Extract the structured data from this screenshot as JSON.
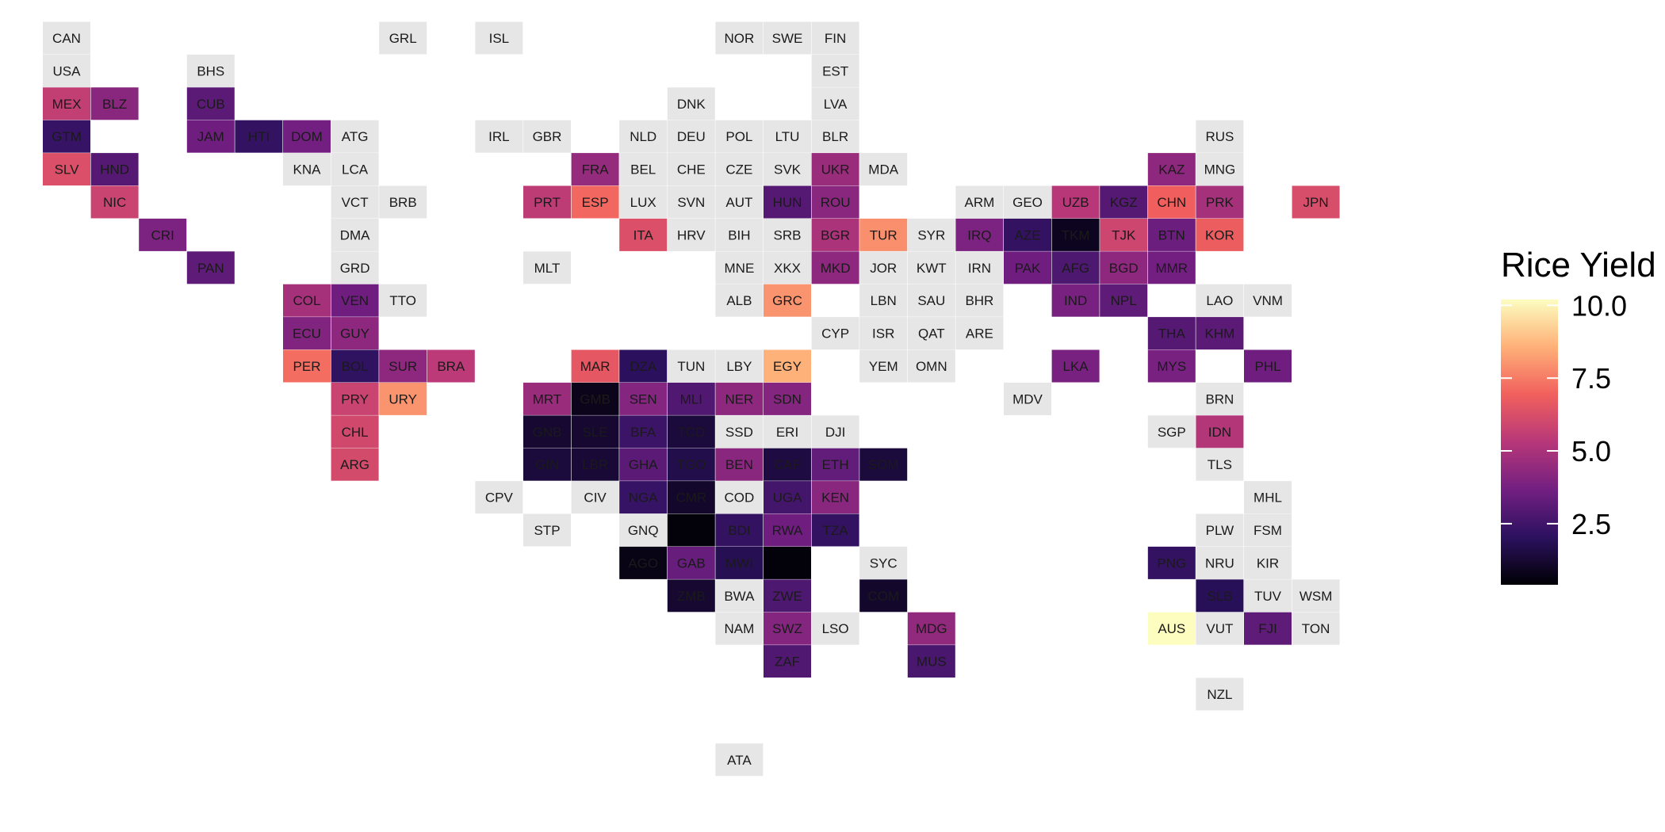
{
  "legend": {
    "title": "Rice Yield",
    "ticks": [
      2.5,
      5.0,
      7.5,
      10.0
    ],
    "tick_labels": [
      "2.5",
      "5.0",
      "7.5",
      "10.0"
    ],
    "domain": [
      0.4,
      10.2
    ],
    "colormap": "magma",
    "colors": [
      "#000004",
      "#2c115f",
      "#721f81",
      "#b73779",
      "#f1605d",
      "#feb078",
      "#fcfdbf"
    ]
  },
  "no_data_color": "#e6e6e6",
  "tiles": [
    {
      "code": "CAN",
      "col": 0,
      "row": 0,
      "value": null
    },
    {
      "code": "GRL",
      "col": 7,
      "row": 0,
      "value": null
    },
    {
      "code": "ISL",
      "col": 9,
      "row": 0,
      "value": null
    },
    {
      "code": "NOR",
      "col": 14,
      "row": 0,
      "value": null
    },
    {
      "code": "SWE",
      "col": 15,
      "row": 0,
      "value": null
    },
    {
      "code": "FIN",
      "col": 16,
      "row": 0,
      "value": null
    },
    {
      "code": "USA",
      "col": 0,
      "row": 1,
      "value": null
    },
    {
      "code": "BHS",
      "col": 3,
      "row": 1,
      "value": null
    },
    {
      "code": "EST",
      "col": 16,
      "row": 1,
      "value": null
    },
    {
      "code": "MEX",
      "col": 0,
      "row": 2,
      "value": 5.6
    },
    {
      "code": "BLZ",
      "col": 1,
      "row": 2,
      "value": 4.2
    },
    {
      "code": "CUB",
      "col": 3,
      "row": 2,
      "value": 3.1
    },
    {
      "code": "DNK",
      "col": 13,
      "row": 2,
      "value": null
    },
    {
      "code": "LVA",
      "col": 16,
      "row": 2,
      "value": null
    },
    {
      "code": "GTM",
      "col": 0,
      "row": 3,
      "value": 2.3
    },
    {
      "code": "JAM",
      "col": 3,
      "row": 3,
      "value": 3.6
    },
    {
      "code": "HTI",
      "col": 4,
      "row": 3,
      "value": 2.2
    },
    {
      "code": "DOM",
      "col": 5,
      "row": 3,
      "value": 3.7
    },
    {
      "code": "ATG",
      "col": 6,
      "row": 3,
      "value": null
    },
    {
      "code": "IRL",
      "col": 9,
      "row": 3,
      "value": null
    },
    {
      "code": "GBR",
      "col": 10,
      "row": 3,
      "value": null
    },
    {
      "code": "NLD",
      "col": 12,
      "row": 3,
      "value": null
    },
    {
      "code": "DEU",
      "col": 13,
      "row": 3,
      "value": null
    },
    {
      "code": "POL",
      "col": 14,
      "row": 3,
      "value": null
    },
    {
      "code": "LTU",
      "col": 15,
      "row": 3,
      "value": null
    },
    {
      "code": "BLR",
      "col": 16,
      "row": 3,
      "value": null
    },
    {
      "code": "RUS",
      "col": 24,
      "row": 3,
      "value": null
    },
    {
      "code": "SLV",
      "col": 0,
      "row": 4,
      "value": 6.3
    },
    {
      "code": "HND",
      "col": 1,
      "row": 4,
      "value": 3.0
    },
    {
      "code": "KNA",
      "col": 5,
      "row": 4,
      "value": null
    },
    {
      "code": "LCA",
      "col": 6,
      "row": 4,
      "value": null
    },
    {
      "code": "FRA",
      "col": 11,
      "row": 4,
      "value": 4.5
    },
    {
      "code": "BEL",
      "col": 12,
      "row": 4,
      "value": null
    },
    {
      "code": "CHE",
      "col": 13,
      "row": 4,
      "value": null
    },
    {
      "code": "CZE",
      "col": 14,
      "row": 4,
      "value": null
    },
    {
      "code": "SVK",
      "col": 15,
      "row": 4,
      "value": null
    },
    {
      "code": "UKR",
      "col": 16,
      "row": 4,
      "value": 4.6
    },
    {
      "code": "MDA",
      "col": 17,
      "row": 4,
      "value": null
    },
    {
      "code": "KAZ",
      "col": 23,
      "row": 4,
      "value": 4.3
    },
    {
      "code": "MNG",
      "col": 24,
      "row": 4,
      "value": null
    },
    {
      "code": "NIC",
      "col": 1,
      "row": 5,
      "value": 5.8
    },
    {
      "code": "VCT",
      "col": 6,
      "row": 5,
      "value": null
    },
    {
      "code": "BRB",
      "col": 7,
      "row": 5,
      "value": null
    },
    {
      "code": "PRT",
      "col": 10,
      "row": 5,
      "value": 5.5
    },
    {
      "code": "ESP",
      "col": 11,
      "row": 5,
      "value": 7.1
    },
    {
      "code": "LUX",
      "col": 12,
      "row": 5,
      "value": null
    },
    {
      "code": "SVN",
      "col": 13,
      "row": 5,
      "value": null
    },
    {
      "code": "AUT",
      "col": 14,
      "row": 5,
      "value": null
    },
    {
      "code": "HUN",
      "col": 15,
      "row": 5,
      "value": 3.0
    },
    {
      "code": "ROU",
      "col": 16,
      "row": 5,
      "value": 4.2
    },
    {
      "code": "ARM",
      "col": 19,
      "row": 5,
      "value": null
    },
    {
      "code": "GEO",
      "col": 20,
      "row": 5,
      "value": null
    },
    {
      "code": "UZB",
      "col": 21,
      "row": 5,
      "value": 5.3
    },
    {
      "code": "KGZ",
      "col": 22,
      "row": 5,
      "value": 3.0
    },
    {
      "code": "CHN",
      "col": 23,
      "row": 5,
      "value": 6.9
    },
    {
      "code": "PRK",
      "col": 24,
      "row": 5,
      "value": 4.9
    },
    {
      "code": "JPN",
      "col": 26,
      "row": 5,
      "value": 6.2
    },
    {
      "code": "CRI",
      "col": 2,
      "row": 6,
      "value": 3.9
    },
    {
      "code": "DMA",
      "col": 6,
      "row": 6,
      "value": null
    },
    {
      "code": "ITA",
      "col": 12,
      "row": 6,
      "value": 6.3
    },
    {
      "code": "HRV",
      "col": 13,
      "row": 6,
      "value": null
    },
    {
      "code": "BIH",
      "col": 14,
      "row": 6,
      "value": null
    },
    {
      "code": "SRB",
      "col": 15,
      "row": 6,
      "value": null
    },
    {
      "code": "BGR",
      "col": 16,
      "row": 6,
      "value": 5.0
    },
    {
      "code": "TUR",
      "col": 17,
      "row": 6,
      "value": 7.9
    },
    {
      "code": "SYR",
      "col": 18,
      "row": 6,
      "value": null
    },
    {
      "code": "IRQ",
      "col": 19,
      "row": 6,
      "value": 3.9
    },
    {
      "code": "AZE",
      "col": 20,
      "row": 6,
      "value": 2.2
    },
    {
      "code": "TKM",
      "col": 21,
      "row": 6,
      "value": 0.9
    },
    {
      "code": "TJK",
      "col": 22,
      "row": 6,
      "value": 5.9
    },
    {
      "code": "BTN",
      "col": 23,
      "row": 6,
      "value": 3.5
    },
    {
      "code": "KOR",
      "col": 24,
      "row": 6,
      "value": 6.8
    },
    {
      "code": "PAN",
      "col": 3,
      "row": 7,
      "value": 3.2
    },
    {
      "code": "GRD",
      "col": 6,
      "row": 7,
      "value": null
    },
    {
      "code": "MLT",
      "col": 10,
      "row": 7,
      "value": null
    },
    {
      "code": "MNE",
      "col": 14,
      "row": 7,
      "value": null
    },
    {
      "code": "XKX",
      "col": 15,
      "row": 7,
      "value": null
    },
    {
      "code": "MKD",
      "col": 16,
      "row": 7,
      "value": 4.3
    },
    {
      "code": "JOR",
      "col": 17,
      "row": 7,
      "value": null
    },
    {
      "code": "KWT",
      "col": 18,
      "row": 7,
      "value": null
    },
    {
      "code": "IRN",
      "col": 19,
      "row": 7,
      "value": null
    },
    {
      "code": "PAK",
      "col": 20,
      "row": 7,
      "value": 3.6
    },
    {
      "code": "AFG",
      "col": 21,
      "row": 7,
      "value": 2.8
    },
    {
      "code": "BGD",
      "col": 22,
      "row": 7,
      "value": 4.3
    },
    {
      "code": "MMR",
      "col": 23,
      "row": 7,
      "value": 3.7
    },
    {
      "code": "COL",
      "col": 5,
      "row": 8,
      "value": 4.9
    },
    {
      "code": "VEN",
      "col": 6,
      "row": 8,
      "value": 3.6
    },
    {
      "code": "TTO",
      "col": 7,
      "row": 8,
      "value": null
    },
    {
      "code": "ALB",
      "col": 14,
      "row": 8,
      "value": null
    },
    {
      "code": "GRC",
      "col": 15,
      "row": 8,
      "value": 8.0
    },
    {
      "code": "LBN",
      "col": 17,
      "row": 8,
      "value": null
    },
    {
      "code": "SAU",
      "col": 18,
      "row": 8,
      "value": null
    },
    {
      "code": "BHR",
      "col": 19,
      "row": 8,
      "value": null
    },
    {
      "code": "IND",
      "col": 21,
      "row": 8,
      "value": 3.8
    },
    {
      "code": "NPL",
      "col": 22,
      "row": 8,
      "value": 3.2
    },
    {
      "code": "LAO",
      "col": 24,
      "row": 8,
      "value": null
    },
    {
      "code": "VNM",
      "col": 25,
      "row": 8,
      "value": null
    },
    {
      "code": "ECU",
      "col": 5,
      "row": 9,
      "value": 4.0
    },
    {
      "code": "GUY",
      "col": 6,
      "row": 9,
      "value": 4.3
    },
    {
      "code": "CYP",
      "col": 16,
      "row": 9,
      "value": null
    },
    {
      "code": "ISR",
      "col": 17,
      "row": 9,
      "value": null
    },
    {
      "code": "QAT",
      "col": 18,
      "row": 9,
      "value": null
    },
    {
      "code": "ARE",
      "col": 19,
      "row": 9,
      "value": null
    },
    {
      "code": "THA",
      "col": 23,
      "row": 9,
      "value": 3.0
    },
    {
      "code": "KHM",
      "col": 24,
      "row": 9,
      "value": 3.1
    },
    {
      "code": "PER",
      "col": 5,
      "row": 10,
      "value": 7.2
    },
    {
      "code": "BOL",
      "col": 6,
      "row": 10,
      "value": 2.1
    },
    {
      "code": "SUR",
      "col": 7,
      "row": 10,
      "value": 4.3
    },
    {
      "code": "BRA",
      "col": 8,
      "row": 10,
      "value": 5.4
    },
    {
      "code": "MAR",
      "col": 11,
      "row": 10,
      "value": 6.6
    },
    {
      "code": "DZA",
      "col": 12,
      "row": 10,
      "value": 2.0
    },
    {
      "code": "TUN",
      "col": 13,
      "row": 10,
      "value": null
    },
    {
      "code": "LBY",
      "col": 14,
      "row": 10,
      "value": null
    },
    {
      "code": "EGY",
      "col": 15,
      "row": 10,
      "value": 8.6
    },
    {
      "code": "YEM",
      "col": 17,
      "row": 10,
      "value": null
    },
    {
      "code": "OMN",
      "col": 18,
      "row": 10,
      "value": null
    },
    {
      "code": "LKA",
      "col": 21,
      "row": 10,
      "value": 3.8
    },
    {
      "code": "MYS",
      "col": 23,
      "row": 10,
      "value": 3.8
    },
    {
      "code": "PHL",
      "col": 25,
      "row": 10,
      "value": 3.6
    },
    {
      "code": "PRY",
      "col": 6,
      "row": 11,
      "value": 5.8
    },
    {
      "code": "URY",
      "col": 7,
      "row": 11,
      "value": 8.0
    },
    {
      "code": "MRT",
      "col": 10,
      "row": 11,
      "value": 4.6
    },
    {
      "code": "GMB",
      "col": 11,
      "row": 11,
      "value": 0.8
    },
    {
      "code": "SEN",
      "col": 12,
      "row": 11,
      "value": 4.1
    },
    {
      "code": "MLI",
      "col": 13,
      "row": 11,
      "value": 2.9
    },
    {
      "code": "NER",
      "col": 14,
      "row": 11,
      "value": 4.3
    },
    {
      "code": "SDN",
      "col": 15,
      "row": 11,
      "value": 4.1
    },
    {
      "code": "MDV",
      "col": 20,
      "row": 11,
      "value": null
    },
    {
      "code": "BRN",
      "col": 24,
      "row": 11,
      "value": null
    },
    {
      "code": "CHL",
      "col": 6,
      "row": 12,
      "value": 6.0
    },
    {
      "code": "GNB",
      "col": 10,
      "row": 12,
      "value": 1.2
    },
    {
      "code": "SLE",
      "col": 11,
      "row": 12,
      "value": 1.2
    },
    {
      "code": "BFA",
      "col": 12,
      "row": 12,
      "value": 2.4
    },
    {
      "code": "TCD",
      "col": 13,
      "row": 12,
      "value": 1.4
    },
    {
      "code": "SSD",
      "col": 14,
      "row": 12,
      "value": null
    },
    {
      "code": "ERI",
      "col": 15,
      "row": 12,
      "value": null
    },
    {
      "code": "DJI",
      "col": 16,
      "row": 12,
      "value": null
    },
    {
      "code": "SGP",
      "col": 23,
      "row": 12,
      "value": null
    },
    {
      "code": "IDN",
      "col": 24,
      "row": 12,
      "value": 5.2
    },
    {
      "code": "ARG",
      "col": 6,
      "row": 13,
      "value": 6.1
    },
    {
      "code": "GIN",
      "col": 10,
      "row": 13,
      "value": 1.4
    },
    {
      "code": "LBR",
      "col": 11,
      "row": 13,
      "value": 1.3
    },
    {
      "code": "GHA",
      "col": 12,
      "row": 13,
      "value": 3.1
    },
    {
      "code": "TGO",
      "col": 13,
      "row": 13,
      "value": 1.7
    },
    {
      "code": "BEN",
      "col": 14,
      "row": 13,
      "value": 4.2
    },
    {
      "code": "CAF",
      "col": 15,
      "row": 13,
      "value": 1.5
    },
    {
      "code": "ETH",
      "col": 16,
      "row": 13,
      "value": 3.3
    },
    {
      "code": "SOM",
      "col": 17,
      "row": 13,
      "value": 1.4
    },
    {
      "code": "TLS",
      "col": 24,
      "row": 13,
      "value": null
    },
    {
      "code": "CPV",
      "col": 9,
      "row": 14,
      "value": null
    },
    {
      "code": "CIV",
      "col": 11,
      "row": 14,
      "value": null
    },
    {
      "code": "NGA",
      "col": 12,
      "row": 14,
      "value": 2.3
    },
    {
      "code": "CMR",
      "col": 13,
      "row": 14,
      "value": 1.1
    },
    {
      "code": "COD",
      "col": 14,
      "row": 14,
      "value": null
    },
    {
      "code": "UGA",
      "col": 15,
      "row": 14,
      "value": 2.6
    },
    {
      "code": "KEN",
      "col": 16,
      "row": 14,
      "value": 4.2
    },
    {
      "code": "MHL",
      "col": 25,
      "row": 14,
      "value": null
    },
    {
      "code": "STP",
      "col": 10,
      "row": 15,
      "value": null
    },
    {
      "code": "GNQ",
      "col": 12,
      "row": 15,
      "value": null
    },
    {
      "code": "",
      "col": 13,
      "row": 15,
      "value": 0.5
    },
    {
      "code": "BDI",
      "col": 14,
      "row": 15,
      "value": 2.2
    },
    {
      "code": "RWA",
      "col": 15,
      "row": 15,
      "value": 3.6
    },
    {
      "code": "TZA",
      "col": 16,
      "row": 15,
      "value": 2.2
    },
    {
      "code": "PLW",
      "col": 24,
      "row": 15,
      "value": null
    },
    {
      "code": "FSM",
      "col": 25,
      "row": 15,
      "value": null
    },
    {
      "code": "AGO",
      "col": 12,
      "row": 16,
      "value": 0.7
    },
    {
      "code": "GAB",
      "col": 13,
      "row": 16,
      "value": 3.4
    },
    {
      "code": "MWI",
      "col": 14,
      "row": 16,
      "value": 1.8
    },
    {
      "code": "",
      "col": 15,
      "row": 16,
      "value": 0.5
    },
    {
      "code": "SYC",
      "col": 17,
      "row": 16,
      "value": null
    },
    {
      "code": "PNG",
      "col": 23,
      "row": 16,
      "value": 2.2
    },
    {
      "code": "NRU",
      "col": 24,
      "row": 16,
      "value": null
    },
    {
      "code": "KIR",
      "col": 25,
      "row": 16,
      "value": null
    },
    {
      "code": "ZMB",
      "col": 13,
      "row": 17,
      "value": 1.2
    },
    {
      "code": "BWA",
      "col": 14,
      "row": 17,
      "value": null
    },
    {
      "code": "ZWE",
      "col": 15,
      "row": 17,
      "value": 2.8
    },
    {
      "code": "COM",
      "col": 17,
      "row": 17,
      "value": 1.1
    },
    {
      "code": "SLB",
      "col": 24,
      "row": 17,
      "value": 1.9
    },
    {
      "code": "TUV",
      "col": 25,
      "row": 17,
      "value": null
    },
    {
      "code": "WSM",
      "col": 26,
      "row": 17,
      "value": null
    },
    {
      "code": "NAM",
      "col": 14,
      "row": 18,
      "value": null
    },
    {
      "code": "SWZ",
      "col": 15,
      "row": 18,
      "value": 4.1
    },
    {
      "code": "LSO",
      "col": 16,
      "row": 18,
      "value": null
    },
    {
      "code": "MDG",
      "col": 18,
      "row": 18,
      "value": 4.4
    },
    {
      "code": "AUS",
      "col": 23,
      "row": 18,
      "value": 10.2
    },
    {
      "code": "VUT",
      "col": 24,
      "row": 18,
      "value": null
    },
    {
      "code": "FJI",
      "col": 25,
      "row": 18,
      "value": 3.2
    },
    {
      "code": "TON",
      "col": 26,
      "row": 18,
      "value": null
    },
    {
      "code": "ZAF",
      "col": 15,
      "row": 19,
      "value": 2.9
    },
    {
      "code": "MUS",
      "col": 18,
      "row": 19,
      "value": 2.7
    },
    {
      "code": "NZL",
      "col": 24,
      "row": 20,
      "value": null
    },
    {
      "code": "ATA",
      "col": 14,
      "row": 22,
      "value": null
    }
  ]
}
